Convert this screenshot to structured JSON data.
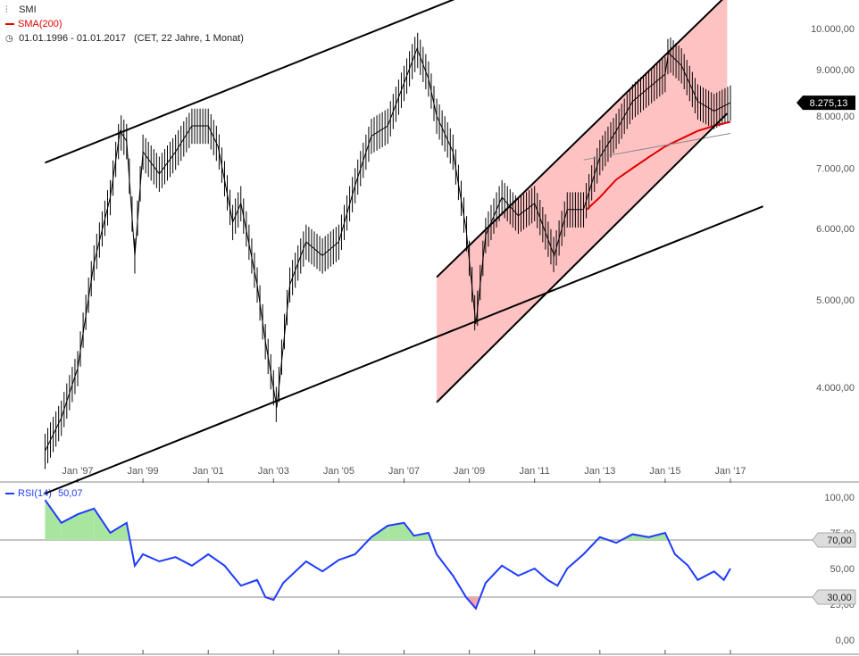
{
  "legend": {
    "symbol_label": "SMI",
    "sma_label": "SMA(200)",
    "period_label": "01.01.1996 - 01.01.2017",
    "period_detail": "(CET, 22 Jahre, 1 Monat)",
    "rsi_label": "RSI(14)",
    "rsi_value": "50,07"
  },
  "colors": {
    "price": "#000000",
    "sma": "#e00000",
    "channel_fill": "#ffc2c2",
    "rsi": "#1e3cff",
    "rsi_overbought_fill": "#a8e6a0",
    "rsi_oversold_fill": "#f4a6a6",
    "price_marker": "#000000"
  },
  "price_marker": "8.275,13",
  "rsi_level_marker_high": "70,00",
  "rsi_level_marker_low": "30,00",
  "chart_data": [
    {
      "type": "line",
      "title": "SMI",
      "scale": "log",
      "ylim": [
        3300,
        10800
      ],
      "y_ticks": [
        "10.000,00",
        "9.000,00",
        "8.000,00",
        "7.000,00",
        "6.000,00",
        "5.000,00",
        "4.000,00"
      ],
      "y_tick_values": [
        10000,
        9000,
        8000,
        7000,
        6000,
        5000,
        4000
      ],
      "x_ticks": [
        "Jan '97",
        "Jan '99",
        "Jan '01",
        "Jan '03",
        "Jan '05",
        "Jan '07",
        "Jan '09",
        "Jan '11",
        "Jan '13",
        "Jan '15",
        "Jan '17"
      ],
      "x_tick_years": [
        1997,
        1999,
        2001,
        2003,
        2005,
        2007,
        2009,
        2011,
        2013,
        2015,
        2017
      ],
      "xlim": [
        1996.0,
        2018.0
      ],
      "series": [
        {
          "name": "SMI",
          "x": [
            1996.0,
            1996.5,
            1997.0,
            1997.5,
            1998.0,
            1998.3,
            1998.5,
            1998.75,
            1999.0,
            1999.5,
            2000.0,
            2000.5,
            2001.0,
            2001.3,
            2001.75,
            2002.0,
            2002.5,
            2002.75,
            2003.1,
            2003.5,
            2004.0,
            2004.5,
            2005.0,
            2005.5,
            2006.0,
            2006.5,
            2007.0,
            2007.4,
            2007.75,
            2008.0,
            2008.5,
            2008.9,
            2009.2,
            2009.5,
            2010.0,
            2010.5,
            2011.0,
            2011.6,
            2012.0,
            2012.5,
            2013.0,
            2013.5,
            2014.0,
            2014.5,
            2015.0,
            2015.1,
            2015.5,
            2016.0,
            2016.5,
            2017.0
          ],
          "values": [
            3400,
            3700,
            4200,
            5500,
            6500,
            7700,
            7500,
            5600,
            7300,
            6900,
            7300,
            7800,
            7800,
            7400,
            6100,
            6400,
            5200,
            4500,
            3800,
            5200,
            5800,
            5600,
            5800,
            6700,
            7600,
            7800,
            8700,
            9500,
            8800,
            8000,
            7300,
            6000,
            4700,
            5900,
            6500,
            6200,
            6400,
            5600,
            6300,
            6300,
            7200,
            7700,
            8300,
            8600,
            8900,
            9400,
            9100,
            8300,
            8100,
            8275
          ]
        },
        {
          "name": "SMA(200)",
          "x": [
            2012.6,
            2013.0,
            2013.5,
            2014.0,
            2014.5,
            2015.0,
            2015.5,
            2016.0,
            2016.5,
            2017.0
          ],
          "values": [
            6300,
            6500,
            6800,
            7000,
            7200,
            7400,
            7550,
            7700,
            7800,
            7880
          ]
        }
      ],
      "annotations": [
        {
          "kind": "trendline",
          "x": [
            1996.0,
            2008.6
          ],
          "values": [
            7100,
            10800
          ]
        },
        {
          "kind": "trendline",
          "x": [
            1996.0,
            2018.0
          ],
          "values": [
            3050,
            6350
          ]
        },
        {
          "kind": "channel",
          "lower_x": [
            2008.0,
            2016.9
          ],
          "lower_values": [
            3850,
            8050
          ],
          "upper_x": [
            2008.0,
            2016.9
          ],
          "upper_values": [
            5300,
            10900
          ]
        },
        {
          "kind": "trendline",
          "x": [
            2012.5,
            2017.0
          ],
          "values": [
            7150,
            7650
          ]
        }
      ]
    },
    {
      "type": "line",
      "title": "RSI(14)",
      "ylim": [
        0,
        100
      ],
      "y_ticks": [
        "100,00",
        "75,00",
        "50,00",
        "25,00",
        "0,00"
      ],
      "y_tick_values": [
        100,
        75,
        50,
        25,
        0
      ],
      "levels": [
        70,
        30
      ],
      "xlim": [
        1996.0,
        2018.0
      ],
      "series": [
        {
          "name": "RSI(14)",
          "x": [
            1996.0,
            1996.5,
            1997.0,
            1997.5,
            1998.0,
            1998.5,
            1998.75,
            1999.0,
            1999.5,
            2000.0,
            2000.5,
            2001.0,
            2001.5,
            2002.0,
            2002.5,
            2002.75,
            2003.0,
            2003.3,
            2004.0,
            2004.5,
            2005.0,
            2005.5,
            2006.0,
            2006.5,
            2007.0,
            2007.3,
            2007.75,
            2008.0,
            2008.5,
            2008.9,
            2009.2,
            2009.5,
            2010.0,
            2010.5,
            2011.0,
            2011.4,
            2011.7,
            2012.0,
            2012.5,
            2013.0,
            2013.5,
            2014.0,
            2014.5,
            2015.0,
            2015.3,
            2015.7,
            2016.0,
            2016.5,
            2016.8,
            2017.0
          ],
          "values": [
            98,
            82,
            88,
            92,
            75,
            82,
            52,
            60,
            55,
            58,
            52,
            60,
            52,
            38,
            42,
            30,
            28,
            40,
            55,
            48,
            56,
            60,
            72,
            80,
            82,
            73,
            75,
            60,
            45,
            30,
            22,
            40,
            52,
            45,
            50,
            42,
            38,
            50,
            60,
            72,
            68,
            74,
            72,
            75,
            60,
            52,
            42,
            48,
            42,
            50
          ]
        }
      ]
    }
  ]
}
